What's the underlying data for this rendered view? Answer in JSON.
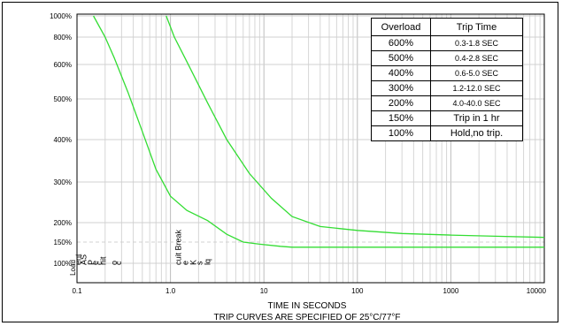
{
  "chart_data": {
    "type": "line",
    "title": "",
    "xlabel": "TIME IN SECONDS",
    "subtitle": "TRIP CURVES ARE SPECIFIED OF 25°C/77°F",
    "ylabel": "Load",
    "xscale": "log",
    "xlim": [
      0.1,
      10000
    ],
    "ylim": [
      100,
      1000
    ],
    "x_ticks": [
      "0.1",
      "1.0",
      "10",
      "100",
      "1000",
      "10000"
    ],
    "y_ticks": [
      {
        "value": 1000,
        "label": "1000%"
      },
      {
        "value": 800,
        "label": "800%"
      },
      {
        "value": 600,
        "label": "600%"
      },
      {
        "value": 500,
        "label": "500%"
      },
      {
        "value": 400,
        "label": "400%"
      },
      {
        "value": 300,
        "label": "300%"
      },
      {
        "value": 200,
        "label": "200%"
      },
      {
        "value": 150,
        "label": "150%"
      },
      {
        "value": 100,
        "label": "100%"
      }
    ],
    "grid": true,
    "line_color": "#33dd33",
    "series": [
      {
        "points": [
          [
            0.15,
            1000
          ],
          [
            0.2,
            800
          ],
          [
            0.25,
            650
          ],
          [
            0.35,
            520
          ],
          [
            0.5,
            420
          ],
          [
            0.7,
            330
          ],
          [
            1.0,
            265
          ],
          [
            1.5,
            230
          ],
          [
            2.5,
            205
          ],
          [
            4,
            170
          ],
          [
            6,
            150
          ],
          [
            9,
            145
          ],
          [
            15,
            140
          ],
          [
            20,
            138
          ],
          [
            100,
            138
          ],
          [
            1000,
            138
          ],
          [
            10000,
            138
          ]
        ]
      },
      {
        "points": [
          [
            0.9,
            1000
          ],
          [
            1.1,
            800
          ],
          [
            1.5,
            620
          ],
          [
            2.5,
            490
          ],
          [
            4,
            400
          ],
          [
            7,
            320
          ],
          [
            12,
            260
          ],
          [
            20,
            215
          ],
          [
            40,
            190
          ],
          [
            100,
            180
          ],
          [
            300,
            172
          ],
          [
            1000,
            168
          ],
          [
            3000,
            165
          ],
          [
            10000,
            162
          ]
        ]
      }
    ],
    "vertical_labels": [
      "ent",
      "AS",
      "P",
      "e",
      "c",
      "nit",
      "o",
      "c",
      "cuit Break",
      "e",
      "K",
      "s",
      "lq"
    ]
  },
  "table": {
    "headers": [
      "Overload",
      "Trip Time"
    ],
    "rows": [
      {
        "overload": "600%",
        "trip": "0.3-1.8 SEC"
      },
      {
        "overload": "500%",
        "trip": "0.4-2.8 SEC"
      },
      {
        "overload": "400%",
        "trip": "0.6-5.0 SEC"
      },
      {
        "overload": "300%",
        "trip": "1.2-12.0 SEC"
      },
      {
        "overload": "200%",
        "trip": "4.0-40.0 SEC"
      },
      {
        "overload": "150%",
        "trip": "Trip in 1 hr"
      },
      {
        "overload": "100%",
        "trip": "Hold,no trip."
      }
    ]
  }
}
